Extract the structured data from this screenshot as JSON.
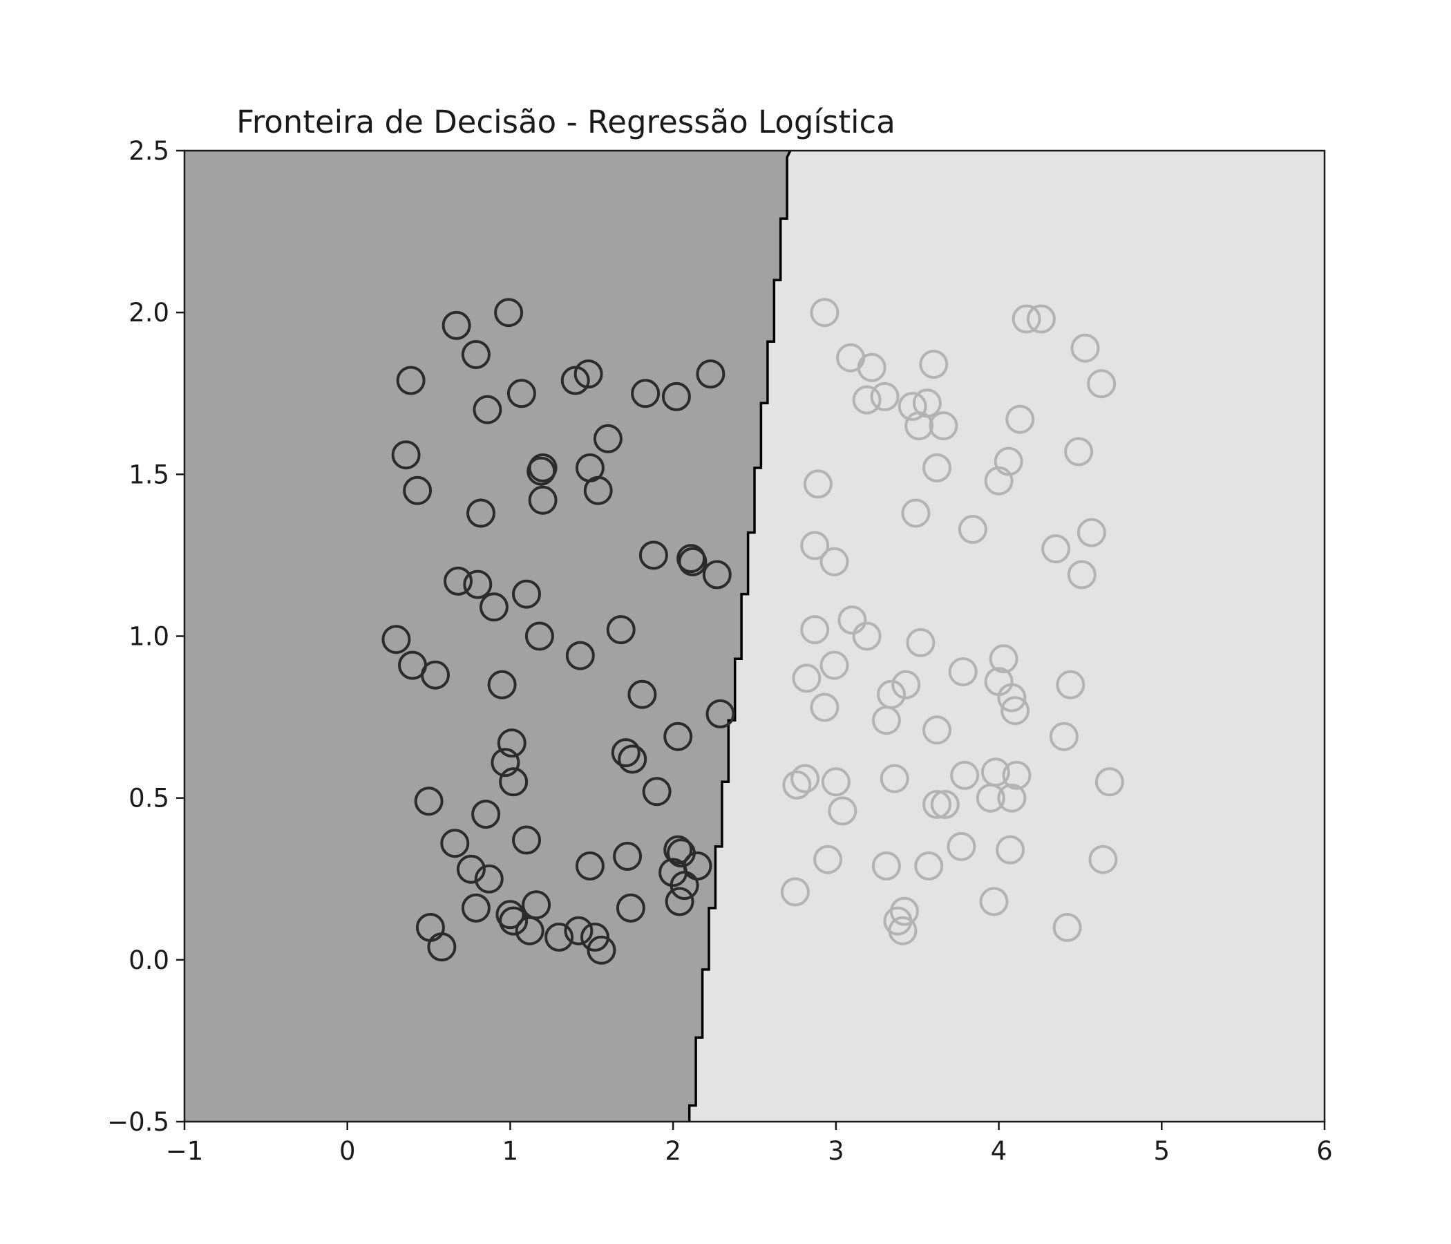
{
  "chart_data": {
    "type": "scatter",
    "title": "Fronteira de Decisão - Regressão Logística",
    "xlabel": "",
    "ylabel": "",
    "xlim": [
      -1,
      6
    ],
    "ylim": [
      -0.5,
      2.5
    ],
    "x_ticks": [
      -1,
      0,
      1,
      2,
      3,
      4,
      5,
      6
    ],
    "x_tick_labels": [
      "−1",
      "0",
      "1",
      "2",
      "3",
      "4",
      "5",
      "6"
    ],
    "y_ticks": [
      -0.5,
      0.0,
      0.5,
      1.0,
      1.5,
      2.0,
      2.5
    ],
    "y_tick_labels": [
      "−0.5",
      "0.0",
      "0.5",
      "1.0",
      "1.5",
      "2.0",
      "2.5"
    ],
    "grid": false,
    "colors": {
      "region_0": "#a2a2a2",
      "region_1": "#e3e3e3",
      "class_0": "#2b2b2b",
      "class_1": "#b3b3b3",
      "boundary": "#000000"
    },
    "decision_boundary": [
      [
        2.1,
        -0.5
      ],
      [
        2.1,
        -0.45
      ],
      [
        2.14,
        -0.45
      ],
      [
        2.14,
        -0.24
      ],
      [
        2.18,
        -0.24
      ],
      [
        2.18,
        -0.03
      ],
      [
        2.22,
        -0.03
      ],
      [
        2.22,
        0.16
      ],
      [
        2.26,
        0.16
      ],
      [
        2.26,
        0.35
      ],
      [
        2.3,
        0.35
      ],
      [
        2.3,
        0.55
      ],
      [
        2.34,
        0.55
      ],
      [
        2.34,
        0.74
      ],
      [
        2.38,
        0.74
      ],
      [
        2.38,
        0.93
      ],
      [
        2.42,
        0.93
      ],
      [
        2.42,
        1.13
      ],
      [
        2.46,
        1.13
      ],
      [
        2.46,
        1.32
      ],
      [
        2.5,
        1.32
      ],
      [
        2.5,
        1.52
      ],
      [
        2.54,
        1.52
      ],
      [
        2.54,
        1.72
      ],
      [
        2.58,
        1.72
      ],
      [
        2.58,
        1.91
      ],
      [
        2.62,
        1.91
      ],
      [
        2.62,
        2.1
      ],
      [
        2.66,
        2.1
      ],
      [
        2.66,
        2.29
      ],
      [
        2.7,
        2.29
      ],
      [
        2.7,
        2.48
      ],
      [
        2.72,
        2.5
      ]
    ],
    "series": [
      {
        "points": [
          [
            0.99,
            2.0
          ],
          [
            0.67,
            1.96
          ],
          [
            0.79,
            1.87
          ],
          [
            0.39,
            1.79
          ],
          [
            1.4,
            1.79
          ],
          [
            1.48,
            1.81
          ],
          [
            2.23,
            1.81
          ],
          [
            1.07,
            1.75
          ],
          [
            1.83,
            1.75
          ],
          [
            2.02,
            1.74
          ],
          [
            0.86,
            1.7
          ],
          [
            1.6,
            1.61
          ],
          [
            0.36,
            1.56
          ],
          [
            1.2,
            1.52
          ],
          [
            1.19,
            1.51
          ],
          [
            1.49,
            1.52
          ],
          [
            0.43,
            1.45
          ],
          [
            1.54,
            1.45
          ],
          [
            1.2,
            1.42
          ],
          [
            0.82,
            1.38
          ],
          [
            1.88,
            1.25
          ],
          [
            2.11,
            1.24
          ],
          [
            2.12,
            1.23
          ],
          [
            2.27,
            1.19
          ],
          [
            0.68,
            1.17
          ],
          [
            0.8,
            1.16
          ],
          [
            1.1,
            1.13
          ],
          [
            0.9,
            1.09
          ],
          [
            1.68,
            1.02
          ],
          [
            0.3,
            0.99
          ],
          [
            1.18,
            1.0
          ],
          [
            1.43,
            0.94
          ],
          [
            0.4,
            0.91
          ],
          [
            0.54,
            0.88
          ],
          [
            0.95,
            0.85
          ],
          [
            1.81,
            0.82
          ],
          [
            2.29,
            0.76
          ],
          [
            2.03,
            0.69
          ],
          [
            1.01,
            0.67
          ],
          [
            1.71,
            0.64
          ],
          [
            1.75,
            0.62
          ],
          [
            0.97,
            0.61
          ],
          [
            1.02,
            0.55
          ],
          [
            1.9,
            0.52
          ],
          [
            0.5,
            0.49
          ],
          [
            0.85,
            0.45
          ],
          [
            1.1,
            0.37
          ],
          [
            0.66,
            0.36
          ],
          [
            2.03,
            0.34
          ],
          [
            2.05,
            0.33
          ],
          [
            1.72,
            0.32
          ],
          [
            1.49,
            0.29
          ],
          [
            2.15,
            0.29
          ],
          [
            0.76,
            0.28
          ],
          [
            2.0,
            0.27
          ],
          [
            0.87,
            0.25
          ],
          [
            2.07,
            0.23
          ],
          [
            2.04,
            0.18
          ],
          [
            1.16,
            0.17
          ],
          [
            0.79,
            0.16
          ],
          [
            1.74,
            0.16
          ],
          [
            1.0,
            0.14
          ],
          [
            1.02,
            0.12
          ],
          [
            0.51,
            0.1
          ],
          [
            1.12,
            0.09
          ],
          [
            1.42,
            0.09
          ],
          [
            1.3,
            0.07
          ],
          [
            1.52,
            0.07
          ],
          [
            0.58,
            0.04
          ],
          [
            1.56,
            0.03
          ]
        ]
      },
      {
        "points": [
          [
            2.93,
            2.0
          ],
          [
            4.17,
            1.98
          ],
          [
            4.26,
            1.98
          ],
          [
            4.53,
            1.89
          ],
          [
            3.09,
            1.86
          ],
          [
            3.22,
            1.83
          ],
          [
            3.6,
            1.84
          ],
          [
            4.63,
            1.78
          ],
          [
            3.3,
            1.74
          ],
          [
            3.19,
            1.73
          ],
          [
            3.47,
            1.71
          ],
          [
            3.56,
            1.72
          ],
          [
            3.51,
            1.65
          ],
          [
            3.66,
            1.65
          ],
          [
            4.13,
            1.67
          ],
          [
            4.49,
            1.57
          ],
          [
            4.06,
            1.54
          ],
          [
            3.62,
            1.52
          ],
          [
            4.0,
            1.48
          ],
          [
            2.89,
            1.47
          ],
          [
            3.49,
            1.38
          ],
          [
            3.84,
            1.33
          ],
          [
            4.57,
            1.32
          ],
          [
            2.87,
            1.28
          ],
          [
            4.35,
            1.27
          ],
          [
            2.99,
            1.23
          ],
          [
            4.51,
            1.19
          ],
          [
            3.1,
            1.05
          ],
          [
            2.87,
            1.02
          ],
          [
            3.19,
            1.0
          ],
          [
            3.52,
            0.98
          ],
          [
            4.03,
            0.93
          ],
          [
            2.99,
            0.91
          ],
          [
            3.78,
            0.89
          ],
          [
            2.82,
            0.87
          ],
          [
            4.0,
            0.86
          ],
          [
            3.43,
            0.85
          ],
          [
            4.44,
            0.85
          ],
          [
            3.34,
            0.82
          ],
          [
            4.08,
            0.81
          ],
          [
            4.1,
            0.77
          ],
          [
            2.93,
            0.78
          ],
          [
            3.31,
            0.74
          ],
          [
            3.62,
            0.71
          ],
          [
            4.4,
            0.69
          ],
          [
            3.79,
            0.57
          ],
          [
            3.98,
            0.58
          ],
          [
            4.11,
            0.57
          ],
          [
            2.76,
            0.54
          ],
          [
            2.81,
            0.56
          ],
          [
            3.0,
            0.55
          ],
          [
            3.36,
            0.56
          ],
          [
            4.68,
            0.55
          ],
          [
            3.95,
            0.5
          ],
          [
            4.08,
            0.5
          ],
          [
            3.62,
            0.48
          ],
          [
            3.67,
            0.48
          ],
          [
            3.04,
            0.46
          ],
          [
            3.77,
            0.35
          ],
          [
            4.07,
            0.34
          ],
          [
            4.64,
            0.31
          ],
          [
            2.95,
            0.31
          ],
          [
            3.57,
            0.29
          ],
          [
            3.31,
            0.29
          ],
          [
            2.75,
            0.21
          ],
          [
            3.97,
            0.18
          ],
          [
            3.42,
            0.15
          ],
          [
            3.38,
            0.12
          ],
          [
            3.41,
            0.09
          ],
          [
            4.42,
            0.1
          ]
        ]
      }
    ]
  }
}
